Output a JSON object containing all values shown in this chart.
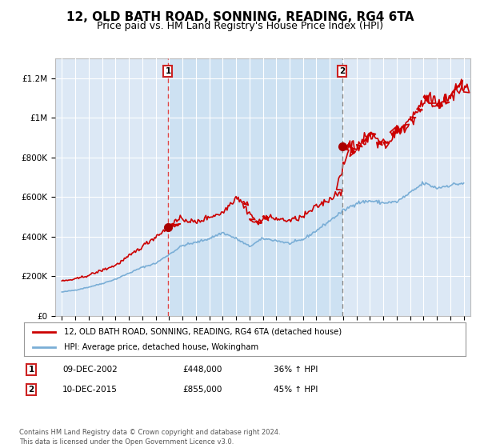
{
  "title": "12, OLD BATH ROAD, SONNING, READING, RG4 6TA",
  "subtitle": "Price paid vs. HM Land Registry's House Price Index (HPI)",
  "title_fontsize": 11,
  "subtitle_fontsize": 9,
  "bg_color": "#ffffff",
  "plot_bg_color": "#dce8f5",
  "shade_color": "#ccddf0",
  "grid_color": "#ffffff",
  "line1_color": "#cc0000",
  "line2_color": "#7aaed6",
  "annotation1_year": 2002.92,
  "annotation1_value": 448000,
  "annotation2_year": 2015.92,
  "annotation2_value": 855000,
  "vline1_color": "#dd4444",
  "vline2_color": "#888888",
  "legend_label1": "12, OLD BATH ROAD, SONNING, READING, RG4 6TA (detached house)",
  "legend_label2": "HPI: Average price, detached house, Wokingham",
  "table_row1": [
    "1",
    "09-DEC-2002",
    "£448,000",
    "36% ↑ HPI"
  ],
  "table_row2": [
    "2",
    "10-DEC-2015",
    "£855,000",
    "45% ↑ HPI"
  ],
  "footer": "Contains HM Land Registry data © Crown copyright and database right 2024.\nThis data is licensed under the Open Government Licence v3.0.",
  "ylim": [
    0,
    1300000
  ],
  "yticks": [
    0,
    200000,
    400000,
    600000,
    800000,
    1000000,
    1200000
  ],
  "ytick_labels": [
    "£0",
    "£200K",
    "£400K",
    "£600K",
    "£800K",
    "£1M",
    "£1.2M"
  ],
  "xlim_start": 1995.0,
  "xlim_end": 2025.5
}
